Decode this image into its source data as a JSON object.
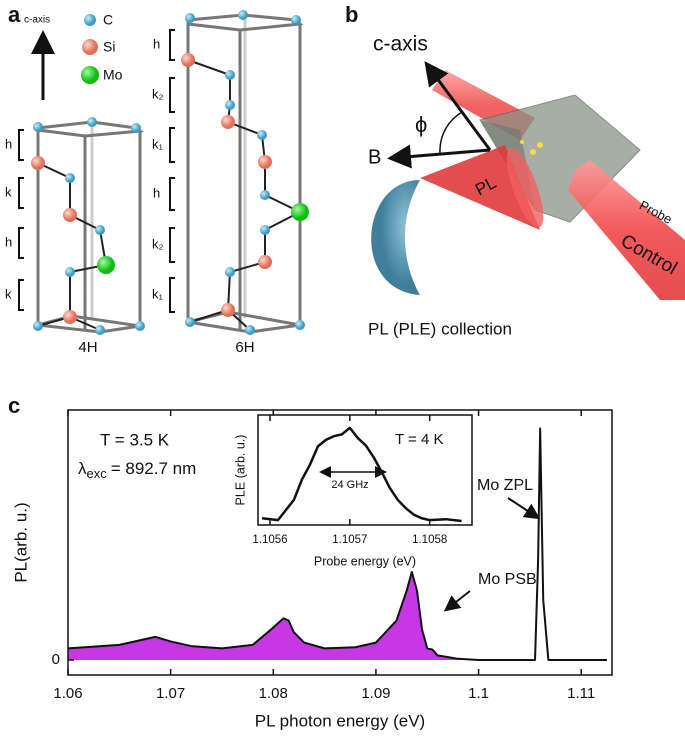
{
  "panel_a": {
    "label": "a",
    "axis_label": "c-axis",
    "legend": [
      {
        "name": "C",
        "color": "#5ab4d6"
      },
      {
        "name": "Si",
        "color": "#f08c78"
      },
      {
        "name": "Mo",
        "color": "#22dd22"
      }
    ],
    "layers_4h": [
      "h",
      "k",
      "h",
      "k"
    ],
    "layers_6h": [
      "h",
      "k₂",
      "k₁",
      "h",
      "k₂",
      "k₁"
    ],
    "polytypes": [
      "4H",
      "6H"
    ]
  },
  "panel_b": {
    "label": "b",
    "axis_label": "c-axis",
    "angle": "ϕ",
    "field": "B",
    "pl": "PL",
    "probe": "Probe",
    "control": "Control",
    "caption": "PL (PLE) collection"
  },
  "panel_c": {
    "label": "c"
  },
  "chart_data": [
    {
      "type": "line",
      "xlabel": "PL photon energy (eV)",
      "ylabel": "PL(arb. u.)",
      "annotations": [
        "T = 3.5 K",
        "Mo ZPL",
        "Mo PSB"
      ],
      "excitation": {
        "symbol": "λ",
        "subscript": "exc",
        "text": "= 892.7 nm"
      },
      "x": [
        1.06,
        1.065,
        1.068,
        1.0685,
        1.07,
        1.072,
        1.075,
        1.078,
        1.08,
        1.081,
        1.0815,
        1.082,
        1.083,
        1.085,
        1.088,
        1.09,
        1.092,
        1.093,
        1.0935,
        1.094,
        1.0945,
        1.095,
        1.0955,
        1.096,
        1.098,
        1.1,
        1.104,
        1.1055,
        1.1058,
        1.106,
        1.1063,
        1.1068,
        1.11,
        1.1125
      ],
      "series": [
        {
          "color": "#111111",
          "values": [
            0.05,
            0.065,
            0.095,
            0.1,
            0.08,
            0.06,
            0.05,
            0.065,
            0.14,
            0.18,
            0.17,
            0.12,
            0.075,
            0.05,
            0.055,
            0.075,
            0.17,
            0.3,
            0.38,
            0.3,
            0.13,
            0.05,
            0.045,
            0.02,
            0.005,
            0,
            0,
            0,
            0.43,
            1.0,
            0.26,
            0,
            0,
            0
          ]
        }
      ],
      "area": {
        "color": "#c637e6",
        "xmax": 1.1053
      },
      "xlim": [
        1.06,
        1.113
      ],
      "ylim": [
        -0.065,
        1.08
      ],
      "xticks": [
        1.06,
        1.07,
        1.08,
        1.09,
        1.1,
        1.11
      ],
      "yticks": [
        0
      ]
    },
    {
      "type": "line",
      "xlabel": "Probe energy (eV)",
      "ylabel": "PLE (arb. u.)",
      "annotations": [
        "T = 4 K",
        "24 GHz"
      ],
      "x": [
        1.10559,
        1.10561,
        1.10562,
        1.10563,
        1.10564,
        1.10565,
        1.10566,
        1.10567,
        1.10568,
        1.10569,
        1.1057,
        1.10571,
        1.10572,
        1.10573,
        1.10574,
        1.10575,
        1.10576,
        1.10577,
        1.10578,
        1.10579,
        1.1058,
        1.10582,
        1.10584
      ],
      "series": [
        {
          "color": "#111111",
          "values": [
            0.04,
            0.02,
            0.13,
            0.24,
            0.46,
            0.62,
            0.82,
            0.89,
            0.93,
            0.95,
            1.02,
            0.91,
            0.83,
            0.7,
            0.54,
            0.37,
            0.24,
            0.15,
            0.08,
            0.04,
            0.02,
            0.03,
            0.01
          ]
        }
      ],
      "xlim": [
        1.105585,
        1.105853
      ],
      "ylim": [
        -0.033,
        1.16
      ],
      "xticks": [
        1.1056,
        1.1057,
        1.1058
      ]
    }
  ]
}
